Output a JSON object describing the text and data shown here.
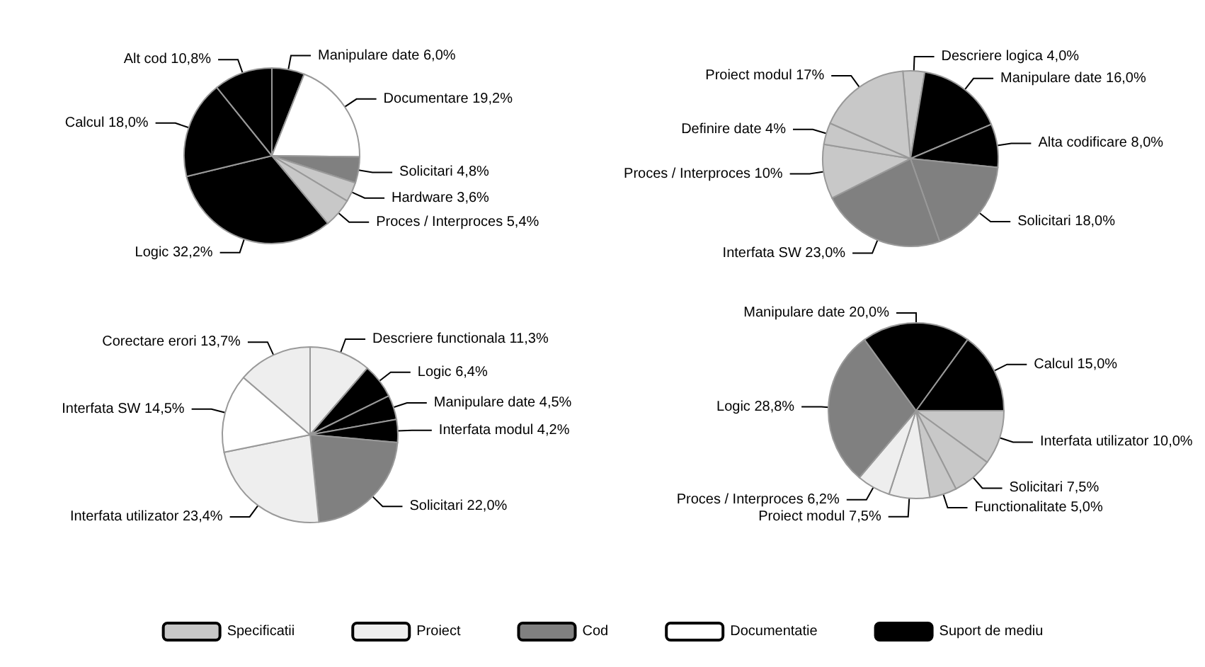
{
  "chart_data": [
    {
      "type": "pie",
      "categories": [
        "Manipulare date",
        "Documentare",
        "Solicitari",
        "Hardware",
        "Proces / Interproces",
        "Logic",
        "Calcul",
        "Alt cod"
      ],
      "values": [
        6.0,
        19.2,
        4.8,
        3.6,
        5.4,
        32.2,
        18.0,
        10.8
      ],
      "colors": [
        "#000000",
        "#ffffff",
        "#808080",
        "#c8c8c8",
        "#c8c8c8",
        "#000000",
        "#000000",
        "#000000"
      ],
      "value_labels": [
        "6,0%",
        "19,2%",
        "4,8%",
        "3,6%",
        "5,4%",
        "32,2%",
        "18,0%",
        "10,8%"
      ]
    },
    {
      "type": "pie",
      "categories": [
        "Descriere logica",
        "Manipulare date",
        "Alta codificare",
        "Solicitari",
        "Interfata SW",
        "Proces / Interproces",
        "Definire date",
        "Proiect modul"
      ],
      "values": [
        4.0,
        16.0,
        8.0,
        18.0,
        23.0,
        10,
        4,
        17
      ],
      "colors": [
        "#c8c8c8",
        "#000000",
        "#000000",
        "#808080",
        "#808080",
        "#c8c8c8",
        "#c8c8c8",
        "#c8c8c8"
      ],
      "value_labels": [
        "4,0%",
        "16,0%",
        "8,0%",
        "18,0%",
        "23,0%",
        "10%",
        "4%",
        "17%"
      ]
    },
    {
      "type": "pie",
      "categories": [
        "Descriere functionala",
        "Logic",
        "Manipulare date",
        "Interfata modul",
        "Solicitari",
        "Interfata utilizator",
        "Interfata SW",
        "Corectare erori"
      ],
      "values": [
        11.3,
        6.4,
        4.5,
        4.2,
        22.0,
        23.4,
        14.5,
        13.7
      ],
      "colors": [
        "#eeeeee",
        "#000000",
        "#000000",
        "#000000",
        "#808080",
        "#eeeeee",
        "#ffffff",
        "#eeeeee"
      ],
      "value_labels": [
        "11,3%",
        "6,4%",
        "4,5%",
        "4,2%",
        "22,0%",
        "23,4%",
        "14,5%",
        "13,7%"
      ]
    },
    {
      "type": "pie",
      "categories": [
        "Interfata utilizator",
        "Solicitari",
        "Functionalitate",
        "Proiect modul",
        "Proces / Interproces",
        "Logic",
        "Manipulare date",
        "Calcul"
      ],
      "values": [
        10.0,
        7.5,
        5.0,
        7.5,
        6.2,
        28.8,
        20.0,
        15.0
      ],
      "colors": [
        "#c8c8c8",
        "#c8c8c8",
        "#c8c8c8",
        "#eeeeee",
        "#eeeeee",
        "#808080",
        "#000000",
        "#000000"
      ],
      "value_labels": [
        "10,0%",
        "7,5%",
        "5,0%",
        "7,5%",
        "6,2%",
        "28,8%",
        "20,0%",
        "15,0%"
      ]
    },
    {
      "type": "other",
      "categories": [
        "Specificatii",
        "Proiect",
        "Cod",
        "Documentatie",
        "Suport de mediu"
      ],
      "colors": [
        "#c8c8c8",
        "#eeeeee",
        "#808080",
        "#ffffff",
        "#000000"
      ]
    }
  ]
}
